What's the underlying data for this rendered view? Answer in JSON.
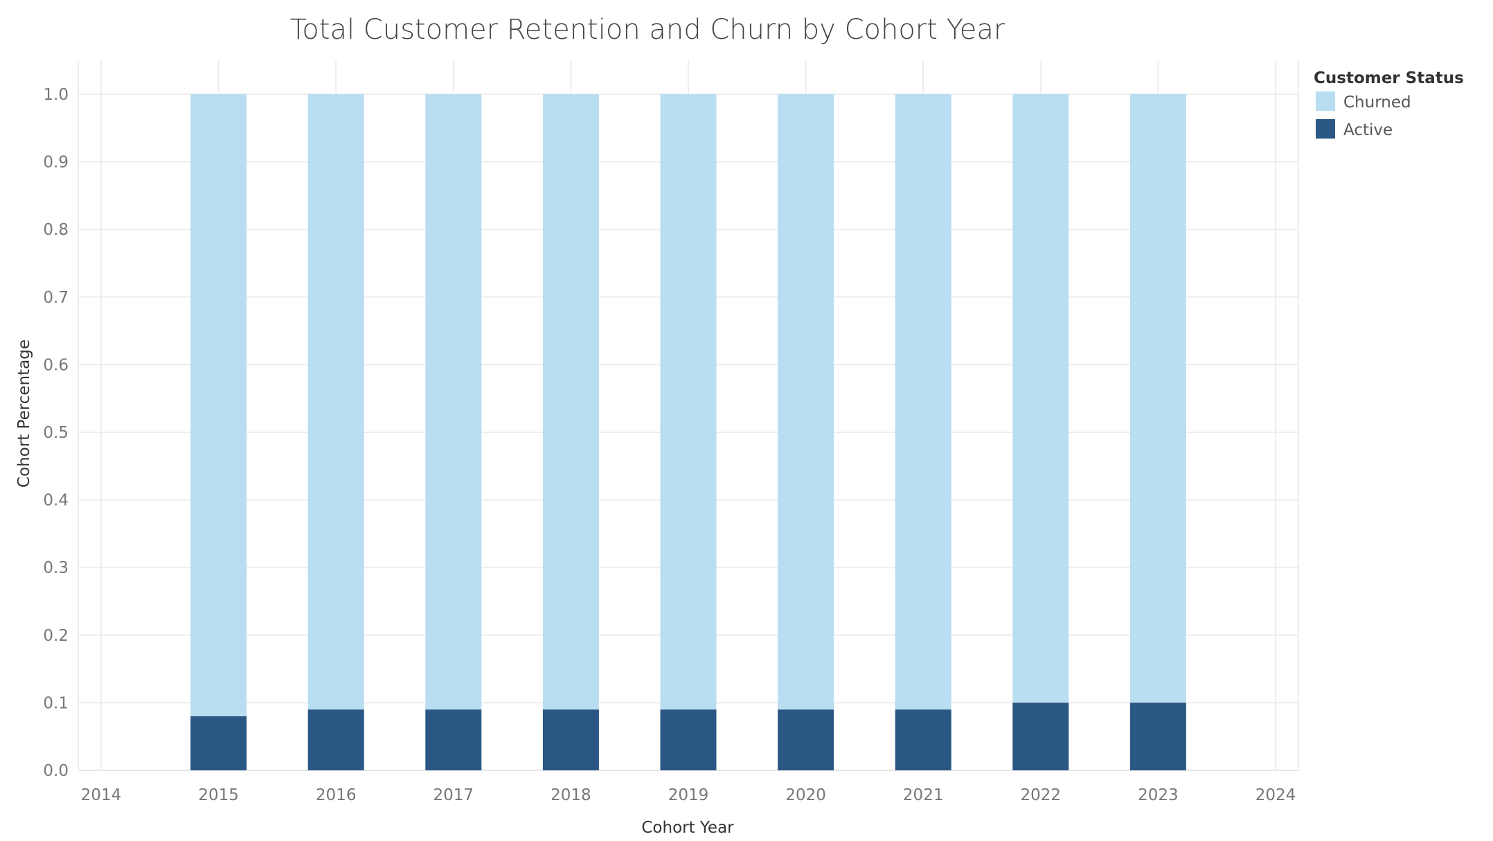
{
  "chart_data": {
    "type": "bar",
    "stacked": true,
    "title": "Total Customer Retention and Churn by Cohort Year",
    "xlabel": "Cohort Year",
    "ylabel": "Cohort Percentage",
    "x_ticks": [
      "2014",
      "2015",
      "2016",
      "2017",
      "2018",
      "2019",
      "2020",
      "2021",
      "2022",
      "2023",
      "2024"
    ],
    "y_ticks": [
      "0.0",
      "0.1",
      "0.2",
      "0.3",
      "0.4",
      "0.5",
      "0.6",
      "0.7",
      "0.8",
      "0.9",
      "1.0"
    ],
    "xlim": [
      2014,
      2024
    ],
    "ylim": [
      0,
      1.0
    ],
    "categories": [
      "2015",
      "2016",
      "2017",
      "2018",
      "2019",
      "2020",
      "2021",
      "2022",
      "2023"
    ],
    "series": [
      {
        "name": "Active",
        "color": "#2b5784",
        "values": [
          0.08,
          0.09,
          0.09,
          0.09,
          0.09,
          0.09,
          0.09,
          0.1,
          0.1
        ]
      },
      {
        "name": "Churned",
        "color": "#b9ddf1",
        "values": [
          0.92,
          0.91,
          0.91,
          0.91,
          0.91,
          0.91,
          0.91,
          0.9,
          0.9
        ]
      }
    ],
    "grid": true,
    "legend": {
      "title": "Customer Status",
      "position": "top-right",
      "items": [
        {
          "label": "Churned",
          "color": "#b9ddf1"
        },
        {
          "label": "Active",
          "color": "#2b5784"
        }
      ]
    }
  }
}
